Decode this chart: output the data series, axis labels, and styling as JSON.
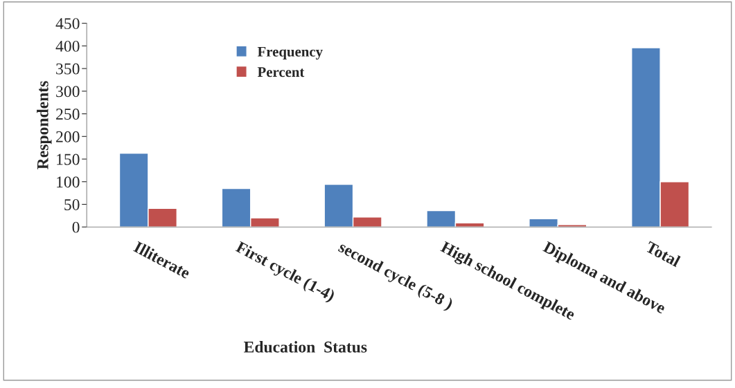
{
  "chart_data": {
    "type": "bar",
    "xlabel": "Education  Status",
    "ylabel": "Respondents",
    "categories": [
      "Illiterate",
      "First cycle (1-4)",
      "second cycle (5-8 )",
      "High school complete",
      "Diploma and above",
      "Total"
    ],
    "series": [
      {
        "name": "Frequency",
        "color": "#4f81bd",
        "values": [
          163,
          85,
          94,
          36,
          18,
          396
        ]
      },
      {
        "name": "Percent",
        "color": "#c0504d",
        "values": [
          41,
          20,
          22,
          9,
          5,
          100
        ]
      }
    ],
    "ylim": [
      0,
      450
    ],
    "yticks": [
      0,
      50,
      100,
      150,
      200,
      250,
      300,
      350,
      400,
      450
    ],
    "grid": false,
    "legend": "top left"
  }
}
